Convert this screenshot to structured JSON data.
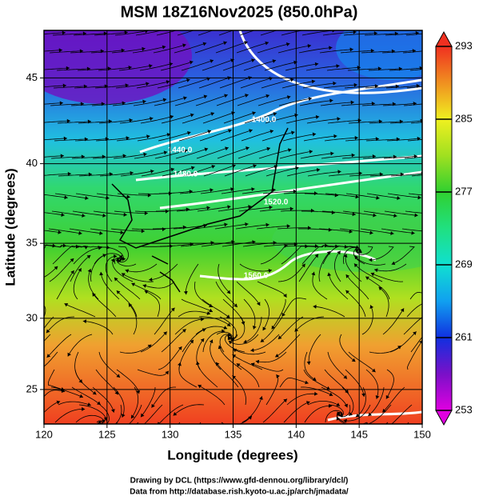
{
  "chart_data": {
    "type": "map",
    "title": "MSM 18Z16Nov2025 (850.0hPa)",
    "xlabel": "Longitude (degrees)",
    "ylabel": "Latitude  (degrees)",
    "xlim": [
      120,
      150
    ],
    "ylim": [
      22.5,
      47.6
    ],
    "xticks": [
      120,
      125,
      130,
      135,
      140,
      145,
      150
    ],
    "yticks": [
      25,
      30,
      35,
      40,
      45
    ],
    "grid": true,
    "colorbar": {
      "lim": [
        253,
        293
      ],
      "ticks": [
        253,
        261,
        269,
        277,
        285,
        293
      ],
      "colors": [
        "#e000e0",
        "#7a10c8",
        "#1030e0",
        "#10a0f0",
        "#10e0d0",
        "#20e080",
        "#30d030",
        "#a0e020",
        "#f0f020",
        "#f09020",
        "#f03020"
      ]
    },
    "contour_labels": [
      "1400.0",
      "1440.0",
      "1480.0",
      "1520.0",
      "1560.0"
    ],
    "annotations": [
      "Drawing by DCL (https://www.gfd-dennou.org/library/dcl/)",
      "Data from http://database.rish.kyoto-u.ac.jp/arch/jmadata/"
    ]
  }
}
